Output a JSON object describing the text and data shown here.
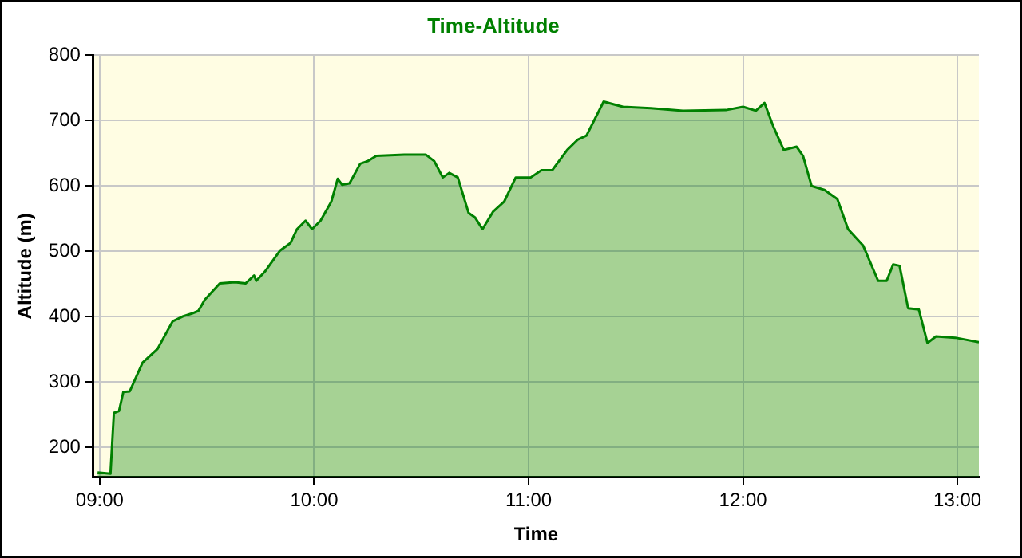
{
  "chart_data": {
    "type": "area",
    "title": "Time-Altitude",
    "xlabel": "Time",
    "ylabel": "Altitude (m)",
    "x": [
      8.99,
      9.05,
      9.066,
      9.09,
      9.11,
      9.14,
      9.2,
      9.27,
      9.34,
      9.39,
      9.43,
      9.46,
      9.49,
      9.56,
      9.63,
      9.68,
      9.72,
      9.73,
      9.77,
      9.84,
      9.89,
      9.92,
      9.96,
      9.99,
      10.03,
      10.08,
      10.11,
      10.13,
      10.165,
      10.215,
      10.25,
      10.29,
      10.42,
      10.52,
      10.56,
      10.6,
      10.63,
      10.67,
      10.72,
      10.75,
      10.785,
      10.835,
      10.886,
      10.94,
      11.01,
      11.06,
      11.11,
      11.18,
      11.23,
      11.27,
      11.35,
      11.44,
      11.57,
      11.72,
      11.92,
      12.0,
      12.06,
      12.1,
      12.14,
      12.19,
      12.25,
      12.28,
      12.32,
      12.38,
      12.44,
      12.49,
      12.56,
      12.63,
      12.67,
      12.7,
      12.73,
      12.77,
      12.82,
      12.86,
      12.9,
      12.99,
      13.1
    ],
    "series": [
      {
        "color": "#008000",
        "values": [
          162,
          160,
          253,
          256,
          285,
          286,
          330,
          351,
          393,
          401,
          405,
          409,
          426,
          451,
          453,
          451,
          463,
          455,
          469,
          501,
          513,
          534,
          547,
          534,
          547,
          576,
          611,
          602,
          604,
          634,
          638,
          646,
          648,
          648,
          638,
          613,
          620,
          613,
          559,
          552,
          534,
          561,
          576,
          613,
          613,
          624,
          624,
          655,
          671,
          677,
          729,
          721,
          719,
          715,
          716,
          721,
          715,
          727,
          692,
          655,
          660,
          646,
          600,
          594,
          580,
          534,
          509,
          455,
          455,
          480,
          478,
          413,
          411,
          360,
          370,
          368,
          361
        ]
      }
    ],
    "xlim": [
      8.97,
      13.1
    ],
    "xticks": [
      {
        "value": 9,
        "label": "09:00"
      },
      {
        "value": 10,
        "label": "10:00"
      },
      {
        "value": 11,
        "label": "11:00"
      },
      {
        "value": 12,
        "label": "12:00"
      },
      {
        "value": 13,
        "label": "13:00"
      }
    ],
    "ylim": [
      155,
      800
    ],
    "yticks": [
      200,
      300,
      400,
      500,
      600,
      700,
      800
    ],
    "grid": true
  }
}
